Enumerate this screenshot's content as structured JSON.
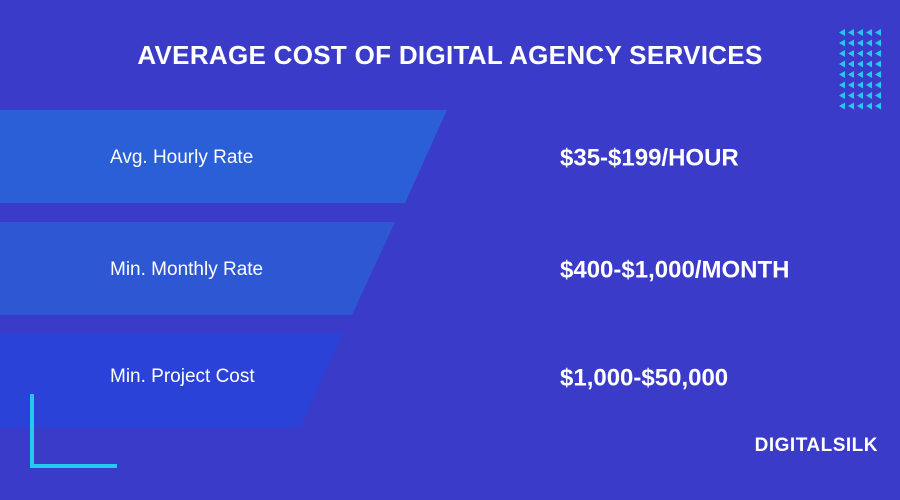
{
  "title": "AVERAGE COST OF DIGITAL AGENCY SERVICES",
  "rows": [
    {
      "label": "Avg. Hourly Rate",
      "value": "$35-$199/HOUR"
    },
    {
      "label": "Min. Monthly Rate",
      "value": "$400-$1,000/MONTH"
    },
    {
      "label": "Min. Project Cost",
      "value": "$1,000-$50,000"
    }
  ],
  "brand": "DIGITALSILK"
}
